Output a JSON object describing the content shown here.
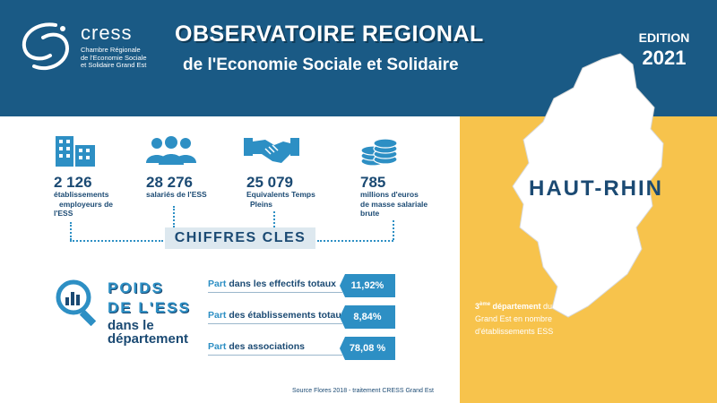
{
  "header": {
    "logo_name": "cress",
    "logo_sub": [
      "Chambre Régionale",
      "de l'Economie Sociale",
      "et Solidaire Grand Est"
    ],
    "title_line1": "OBSERVATOIRE REGIONAL",
    "title_line2": "de l'Economie Sociale et Solidaire",
    "edition_label": "EDITION",
    "edition_year": "2021"
  },
  "region": {
    "name": "HAUT-RHIN",
    "rank_number": "3",
    "rank_sup": "ème",
    "rank_bold": " département",
    "rank_text1": " du",
    "rank_text2": "Grand Est  en nombre",
    "rank_text3": "d'établissements ESS"
  },
  "key_figures": [
    {
      "icon": "buildings-icon",
      "value": "2 126",
      "label_lines": [
        "établissements",
        "employeurs de",
        "l'ESS"
      ]
    },
    {
      "icon": "people-group-icon",
      "value": "28 276",
      "label_lines": [
        "salariés de l'ESS"
      ]
    },
    {
      "icon": "handshake-icon",
      "value": "25 079",
      "label_lines": [
        "Equivalents Temps",
        "Pleins"
      ]
    },
    {
      "icon": "coins-stack-icon",
      "value": "785",
      "label_lines": [
        "millions d'euros",
        "de masse salariale",
        "brute"
      ]
    }
  ],
  "chiffres_cles": "CHIFFRES CLES",
  "poids": {
    "title_line1": "POIDS",
    "title_line2": "DE L'ESS",
    "sub_line1": "dans le",
    "sub_line2": "département",
    "rows": [
      {
        "prefix": "Part",
        "label": " dans les effectifs totaux",
        "value": "11,92%"
      },
      {
        "prefix": "Part",
        "label": " des établissements totaux",
        "value": "8,84%"
      },
      {
        "prefix": "Part",
        "label": " des associations",
        "value": "78,08 %"
      }
    ]
  },
  "source": "Source Flores 2018 - traitement CRESS Grand Est",
  "colors": {
    "header_blue": "#1a5a85",
    "accent_blue": "#2d8fc4",
    "panel_yellow": "#f7c34c",
    "text_navy": "#1b4a73"
  }
}
